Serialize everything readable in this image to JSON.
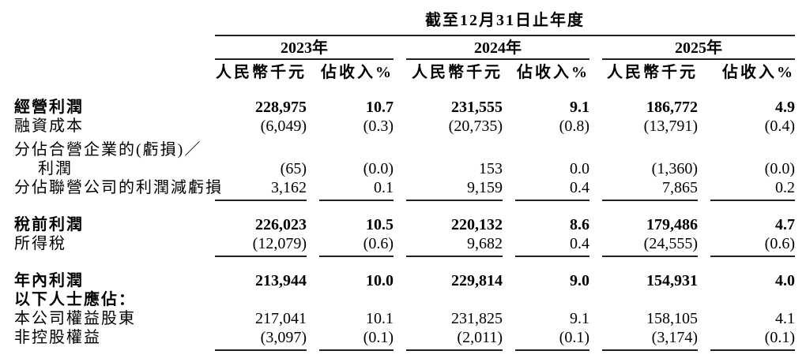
{
  "page": {
    "background": "#ffffff",
    "text_color": "#000000",
    "rule_color": "#231f20"
  },
  "table": {
    "title": "截至12月31日止年度",
    "year_groups": [
      {
        "year": "2023年",
        "col_headers": [
          "人民幣千元",
          "佔收入%"
        ]
      },
      {
        "year": "2024年",
        "col_headers": [
          "人民幣千元",
          "佔收入%"
        ]
      },
      {
        "year": "2025年",
        "col_headers": [
          "人民幣千元",
          "佔收入%"
        ]
      }
    ],
    "rows": [
      {
        "label": "經營利潤",
        "bold": true,
        "values": [
          "228,975",
          "10.7",
          "231,555",
          "9.1",
          "186,772",
          "4.9"
        ]
      },
      {
        "label": "融資成本",
        "values": [
          "(6,049)",
          "(0.3)",
          "(20,735)",
          "(0.8)",
          "(13,791)",
          "(0.4)"
        ]
      },
      {
        "label": "分佔合營企業的(虧損)／",
        "gap_before": true,
        "values": []
      },
      {
        "label": "利潤",
        "indent": true,
        "values": [
          "(65)",
          "(0.0)",
          "153",
          "0.0",
          "(1,360)",
          "(0.0)"
        ]
      },
      {
        "label": "分佔聯營公司的利潤減虧損",
        "underline": true,
        "values": [
          "3,162",
          "0.1",
          "9,159",
          "0.4",
          "7,865",
          "0.2"
        ]
      },
      {
        "spacer": true
      },
      {
        "label": "稅前利潤",
        "bold": true,
        "values": [
          "226,023",
          "10.5",
          "220,132",
          "8.6",
          "179,486",
          "4.7"
        ]
      },
      {
        "label": "所得稅",
        "underline": true,
        "values": [
          "(12,079)",
          "(0.6)",
          "9,682",
          "0.4",
          "(24,555)",
          "(0.6)"
        ]
      },
      {
        "spacer": true
      },
      {
        "label": "年內利潤",
        "bold": true,
        "values": [
          "213,944",
          "10.0",
          "229,814",
          "9.0",
          "154,931",
          "4.0"
        ]
      },
      {
        "label": "以下人士應佔：",
        "bold": true,
        "values": []
      },
      {
        "label": "本公司權益股東",
        "values": [
          "217,041",
          "10.1",
          "231,825",
          "9.1",
          "158,105",
          "4.1"
        ]
      },
      {
        "label": "非控股權益",
        "underline": true,
        "values": [
          "(3,097)",
          "(0.1)",
          "(2,011)",
          "(0.1)",
          "(3,174)",
          "(0.1)"
        ]
      }
    ]
  }
}
